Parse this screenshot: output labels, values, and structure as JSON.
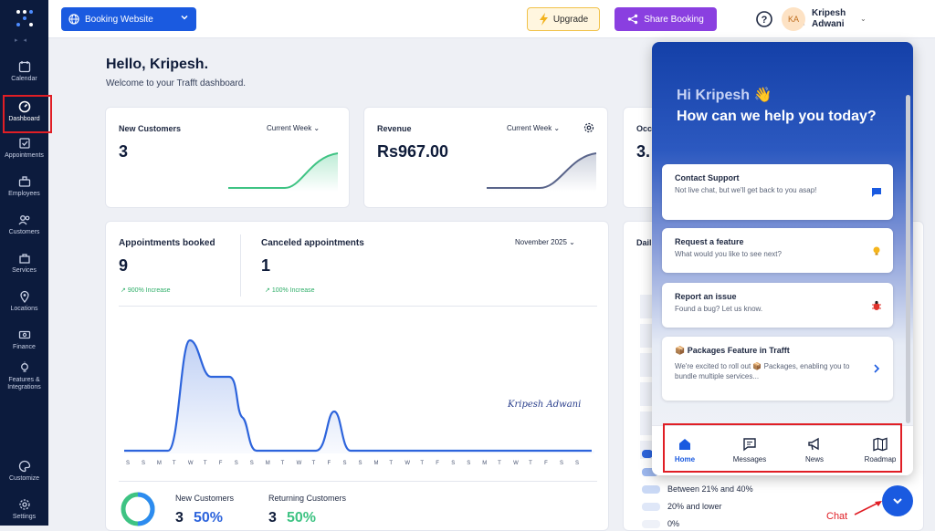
{
  "sidebar": {
    "items": [
      {
        "label": "Calendar",
        "icon": "calendar-icon"
      },
      {
        "label": "Dashboard",
        "icon": "gauge-icon"
      },
      {
        "label": "Appointments",
        "icon": "appointments-icon"
      },
      {
        "label": "Employees",
        "icon": "employees-icon"
      },
      {
        "label": "Customers",
        "icon": "customers-icon"
      },
      {
        "label": "Services",
        "icon": "services-icon"
      },
      {
        "label": "Locations",
        "icon": "location-pin-icon"
      },
      {
        "label": "Finance",
        "icon": "finance-icon"
      },
      {
        "label": "Features & Integrations",
        "icon": "lightbulb-icon"
      },
      {
        "label": "Customize",
        "icon": "palette-icon"
      },
      {
        "label": "Settings",
        "icon": "gear-icon"
      }
    ]
  },
  "topbar": {
    "booking_label": "Booking Website",
    "upgrade_label": "Upgrade",
    "share_label": "Share Booking",
    "user_initials": "KA",
    "user_name": "Kripesh Adwani"
  },
  "greeting": {
    "hello": "Hello, Kripesh.",
    "welcome": "Welcome to your Trafft dashboard."
  },
  "cards": {
    "new_customers": {
      "title": "New Customers",
      "period": "Current Week",
      "value": "3"
    },
    "revenue": {
      "title": "Revenue",
      "period": "Current Week",
      "value": "Rs967.00"
    },
    "occ": {
      "title": "Occ",
      "value": "3."
    }
  },
  "appointments": {
    "booked_title": "Appointments booked",
    "booked_value": "9",
    "booked_increase": "900% Increase",
    "canceled_title": "Canceled appointments",
    "canceled_value": "1",
    "canceled_increase": "100% Increase",
    "month": "November 2025",
    "day_labels": [
      "S",
      "S",
      "M",
      "T",
      "W",
      "T",
      "F",
      "S",
      "S",
      "M",
      "T",
      "W",
      "T",
      "F",
      "S",
      "S",
      "M",
      "T",
      "W",
      "T",
      "F",
      "S",
      "S",
      "M",
      "T",
      "W",
      "T",
      "F",
      "S",
      "S"
    ],
    "signature": "Kripesh Adwani"
  },
  "customers_split": {
    "new_label": "New Customers",
    "new_count": "3",
    "new_pct": "50%",
    "returning_label": "Returning Customers",
    "returning_count": "3",
    "returning_pct": "50%"
  },
  "right_panel": {
    "daily_title": "Dail",
    "legend": [
      {
        "label": "Between 21% and 40%",
        "color": "#c9d8f5"
      },
      {
        "label": "20% and lower",
        "color": "#dfe7f8"
      },
      {
        "label": "0%",
        "color": "#eef1f8"
      }
    ]
  },
  "chat": {
    "greeting": "Hi Kripesh 👋",
    "headline": "How can we help you today?",
    "cards": [
      {
        "title": "Contact Support",
        "sub": "Not live chat, but we'll get back to you asap!",
        "icon": "chat-bubble-icon"
      },
      {
        "title": "Request a feature",
        "sub": "What would you like to see next?",
        "icon": "lightbulb-icon"
      },
      {
        "title": "Report an issue",
        "sub": "Found a bug? Let us know.",
        "icon": "bug-icon"
      },
      {
        "title": "📦 Packages Feature in Trafft",
        "sub": "We're excited to roll out 📦 Packages, enabling you to bundle multiple services...",
        "icon": "chevron-right-icon"
      }
    ],
    "tabs": [
      {
        "label": "Home",
        "icon": "home-icon"
      },
      {
        "label": "Messages",
        "icon": "messages-icon"
      },
      {
        "label": "News",
        "icon": "megaphone-icon"
      },
      {
        "label": "Roadmap",
        "icon": "map-icon"
      }
    ]
  },
  "annotation": {
    "chat_label": "Chat"
  },
  "colors": {
    "primary": "#1a5ae0",
    "sidebar": "#0c1b3d",
    "accent_purple": "#8a3fe0",
    "annotation": "#e01e25"
  }
}
